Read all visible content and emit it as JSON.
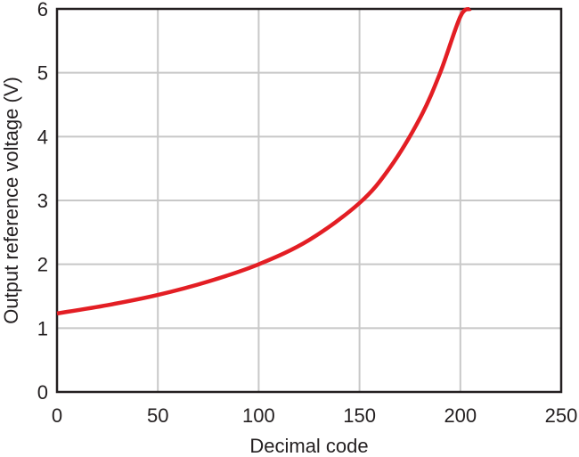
{
  "chart_data": {
    "type": "line",
    "title": "",
    "xlabel": "Decimal code",
    "ylabel": "Output reference voltage (V)",
    "xlim": [
      0,
      250
    ],
    "ylim": [
      0,
      6
    ],
    "x_ticks": [
      "0",
      "50",
      "100",
      "150",
      "200",
      "250"
    ],
    "y_ticks": [
      "0",
      "1",
      "2",
      "3",
      "4",
      "5",
      "6"
    ],
    "grid": true,
    "legend": "none",
    "series": [
      {
        "color": "#e31e24",
        "x": [
          0,
          25,
          50,
          75,
          100,
          125,
          150,
          165,
          180,
          190,
          200,
          205
        ],
        "y": [
          1.23,
          1.36,
          1.52,
          1.73,
          2.0,
          2.38,
          2.96,
          3.51,
          4.29,
          5.0,
          5.88,
          6.0
        ]
      }
    ]
  }
}
